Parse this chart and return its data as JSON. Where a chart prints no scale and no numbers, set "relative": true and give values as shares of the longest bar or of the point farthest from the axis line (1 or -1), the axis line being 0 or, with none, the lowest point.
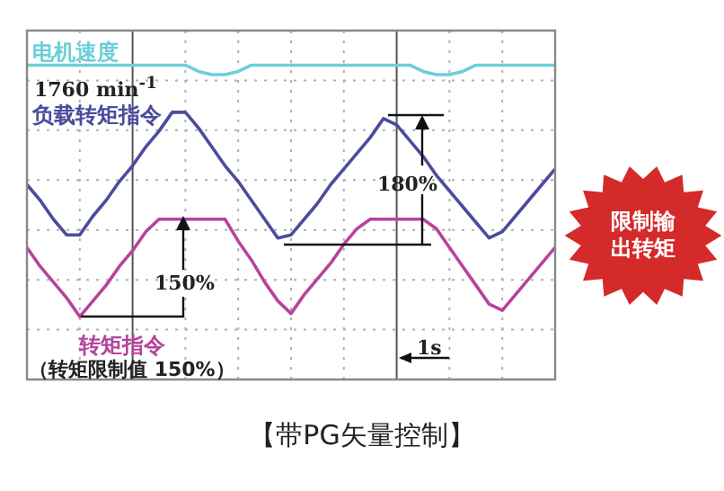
{
  "chart_data": {
    "type": "line",
    "relative": true,
    "grid": true,
    "marker": "none",
    "title": "【带PG矢量控制】",
    "categories": [
      null,
      null,
      null,
      null,
      null,
      null,
      null,
      null,
      null,
      null,
      null,
      null,
      null,
      null,
      null,
      null,
      null,
      null,
      null,
      null,
      null,
      null,
      null,
      null,
      null,
      null,
      null,
      null,
      null,
      null,
      null,
      null,
      null,
      null,
      null,
      null,
      null,
      null,
      null,
      null,
      null
    ],
    "series": [
      {
        "name": "电机速度",
        "color": "#6ccfd8",
        "values": [
          1,
          1,
          1,
          1,
          1,
          1,
          1,
          1,
          1,
          1,
          1,
          1,
          1,
          0.98,
          0.97,
          0.97,
          0.98,
          1,
          1,
          1,
          1,
          1,
          1,
          1,
          1,
          1,
          1,
          1,
          1,
          1,
          0.98,
          0.97,
          0.97,
          0.98,
          1,
          1,
          1,
          1,
          1,
          1,
          1
        ]
      },
      {
        "name": "负载转矩指令",
        "color": "#4b4c9e",
        "values": [
          0.62,
          0.57,
          0.51,
          0.46,
          0.46,
          0.52,
          0.57,
          0.63,
          0.68,
          0.74,
          0.79,
          0.85,
          0.85,
          0.8,
          0.74,
          0.68,
          0.63,
          0.57,
          0.51,
          0.45,
          0.46,
          0.51,
          0.56,
          0.62,
          0.67,
          0.72,
          0.77,
          0.83,
          0.81,
          0.76,
          0.71,
          0.65,
          0.6,
          0.55,
          0.5,
          0.45,
          0.47,
          0.52,
          0.57,
          0.62,
          0.67
        ]
      },
      {
        "name": "转矩指令",
        "color": "#b5449c",
        "values": [
          0.42,
          0.36,
          0.31,
          0.26,
          0.2,
          0.25,
          0.3,
          0.36,
          0.41,
          0.47,
          0.51,
          0.51,
          0.51,
          0.51,
          0.51,
          0.51,
          0.44,
          0.38,
          0.31,
          0.25,
          0.21,
          0.27,
          0.32,
          0.37,
          0.43,
          0.48,
          0.51,
          0.51,
          0.51,
          0.51,
          0.51,
          0.48,
          0.42,
          0.36,
          0.3,
          0.24,
          0.22,
          0.27,
          0.32,
          0.37,
          0.42
        ]
      }
    ],
    "annotations": [
      "1760 min$^{-1}$",
      "180%",
      "150%",
      "（转矩限制值 150%）",
      "1s",
      "限制输出转矩"
    ]
  }
}
